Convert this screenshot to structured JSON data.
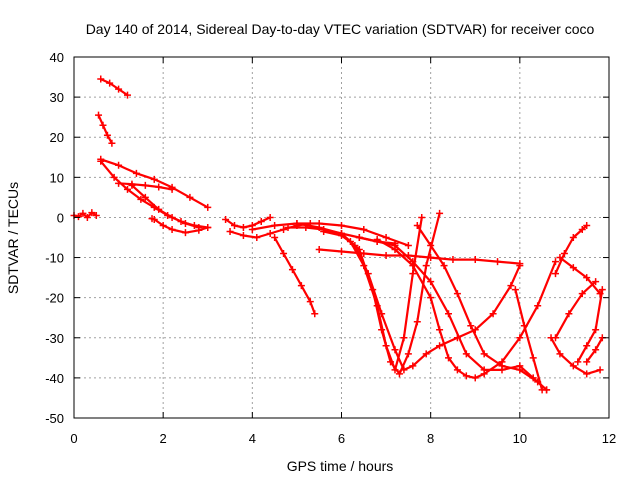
{
  "chart_data": {
    "type": "line",
    "title": "Day 140 of 2014, Sidereal Day-to-day VTEC variation (SDTVAR) for receiver coco",
    "xlabel": "GPS time / hours",
    "ylabel": "SDTVAR / TECUs",
    "xlim": [
      0,
      12
    ],
    "ylim": [
      -50,
      40
    ],
    "xticks": [
      "0",
      "2",
      "4",
      "6",
      "8",
      "10",
      "12"
    ],
    "yticks": [
      "40",
      "30",
      "20",
      "10",
      "0",
      "-10",
      "-20",
      "-30",
      "-40",
      "-50"
    ],
    "grid": true,
    "series_color": "#ff0000",
    "marker": "plus",
    "series": [
      {
        "x": [
          0.0,
          0.1,
          0.2,
          0.3,
          0.4,
          0.5
        ],
        "y": [
          0.5,
          0.2,
          1.0,
          0.0,
          1.2,
          0.5
        ]
      },
      {
        "x": [
          0.6,
          0.8,
          1.0,
          1.2
        ],
        "y": [
          34.5,
          33.5,
          32.0,
          30.5
        ]
      },
      {
        "x": [
          0.55,
          0.65,
          0.75,
          0.85
        ],
        "y": [
          25.5,
          23.0,
          20.5,
          18.5
        ]
      },
      {
        "x": [
          0.6,
          1.0,
          1.4,
          1.8,
          2.2,
          2.6,
          3.0
        ],
        "y": [
          14.5,
          13.0,
          11.0,
          9.5,
          7.5,
          5.0,
          2.5
        ]
      },
      {
        "x": [
          0.6,
          0.9,
          1.2,
          1.5,
          1.8,
          2.1,
          2.4,
          2.7,
          3.0
        ],
        "y": [
          14.0,
          10.0,
          7.0,
          4.5,
          2.5,
          0.5,
          -1.0,
          -2.0,
          -2.5
        ]
      },
      {
        "x": [
          1.0,
          1.3,
          1.6,
          1.9,
          2.2
        ],
        "y": [
          8.5,
          8.3,
          8.0,
          7.6,
          7.0
        ]
      },
      {
        "x": [
          1.3,
          1.6,
          1.9,
          2.2,
          2.5,
          2.8
        ],
        "y": [
          8.0,
          5.0,
          2.0,
          0.0,
          -1.5,
          -2.5
        ]
      },
      {
        "x": [
          1.8,
          2.0,
          2.2,
          2.5,
          2.8,
          3.0
        ],
        "y": [
          -0.5,
          -2.0,
          -3.0,
          -3.8,
          -3.2,
          -2.5
        ]
      },
      {
        "x": [
          1.75
        ],
        "y": [
          -0.3
        ]
      },
      {
        "x": [
          3.4,
          3.6,
          3.8,
          4.0,
          4.2,
          4.4
        ],
        "y": [
          -0.5,
          -2.0,
          -2.5,
          -2.0,
          -1.0,
          0.0
        ]
      },
      {
        "x": [
          3.5,
          3.8,
          4.1,
          4.4,
          4.7,
          5.0,
          5.3
        ],
        "y": [
          -3.5,
          -4.5,
          -5.0,
          -4.0,
          -3.0,
          -2.0,
          -1.5
        ]
      },
      {
        "x": [
          4.0,
          4.5,
          5.0,
          5.5,
          6.0,
          6.5,
          7.0,
          7.5
        ],
        "y": [
          -3.0,
          -2.0,
          -1.5,
          -1.5,
          -2.0,
          -3.0,
          -5.0,
          -7.0
        ]
      },
      {
        "x": [
          4.5,
          4.7,
          4.9,
          5.1,
          5.3,
          5.4
        ],
        "y": [
          -5.0,
          -9.0,
          -13.0,
          -17.0,
          -21.0,
          -24.0
        ]
      },
      {
        "x": [
          4.8,
          5.2,
          5.6,
          6.0,
          6.4,
          6.8,
          7.2
        ],
        "y": [
          -2.5,
          -2.5,
          -3.0,
          -4.0,
          -5.0,
          -6.0,
          -6.5
        ]
      },
      {
        "x": [
          5.5,
          6.0,
          6.5,
          7.0,
          7.5,
          8.0,
          8.5,
          9.0,
          9.5,
          10.0
        ],
        "y": [
          -8.0,
          -8.5,
          -9.0,
          -9.5,
          -9.5,
          -10.0,
          -10.5,
          -10.5,
          -11.0,
          -11.5
        ]
      },
      {
        "x": [
          5.0,
          5.5,
          6.0,
          6.4,
          6.7,
          6.9,
          7.1,
          7.3,
          7.5,
          7.7,
          7.9,
          8.2
        ],
        "y": [
          -1.5,
          -2.5,
          -4.0,
          -8.0,
          -18.0,
          -28.0,
          -36.0,
          -39.0,
          -34.0,
          -26.0,
          -12.0,
          1.0
        ]
      },
      {
        "x": [
          5.6,
          6.0,
          6.3,
          6.6,
          6.9,
          7.2,
          7.4,
          7.6,
          7.9,
          8.2,
          8.6,
          9.0,
          9.4,
          9.8,
          10.0
        ],
        "y": [
          -3.5,
          -4.5,
          -7.0,
          -14.0,
          -24.0,
          -33.0,
          -38.0,
          -37.0,
          -34.0,
          -32.0,
          -30.0,
          -28.0,
          -24.0,
          -17.0,
          -12.0
        ]
      },
      {
        "x": [
          6.2,
          6.5,
          6.8,
          7.0,
          7.2,
          7.4,
          7.6,
          7.8
        ],
        "y": [
          -6.0,
          -12.0,
          -22.0,
          -32.0,
          -38.0,
          -30.0,
          -14.0,
          0.0
        ]
      },
      {
        "x": [
          6.4,
          6.8,
          7.2,
          7.6,
          8.0,
          8.4,
          8.8,
          9.2,
          9.6,
          10.0,
          10.3,
          10.6
        ],
        "y": [
          -5.0,
          -6.0,
          -7.0,
          -11.0,
          -16.0,
          -24.0,
          -34.0,
          -38.0,
          -38.0,
          -37.0,
          -40.0,
          -43.0
        ]
      },
      {
        "x": [
          6.8,
          7.2,
          7.6,
          8.0,
          8.2,
          8.4,
          8.6,
          8.8,
          9.0,
          9.2,
          9.6,
          10.0,
          10.4,
          10.8
        ],
        "y": [
          -5.5,
          -8.0,
          -12.0,
          -20.0,
          -28.0,
          -35.0,
          -38.0,
          -39.5,
          -40.0,
          -39.0,
          -36.0,
          -30.0,
          -22.0,
          -11.0
        ]
      },
      {
        "x": [
          7.7,
          8.0,
          8.3,
          8.6,
          8.9,
          9.2,
          9.6,
          10.0,
          10.4,
          10.6
        ],
        "y": [
          -2.0,
          -7.0,
          -12.0,
          -19.0,
          -27.0,
          -34.0,
          -37.0,
          -38.0,
          -41.0,
          -43.0
        ]
      },
      {
        "x": [
          9.9,
          10.1,
          10.3,
          10.5
        ],
        "y": [
          -18.0,
          -27.0,
          -35.0,
          -43.0
        ]
      },
      {
        "x": [
          10.7,
          10.9,
          11.2,
          11.5,
          11.8
        ],
        "y": [
          -30.0,
          -34.0,
          -37.0,
          -39.0,
          -38.0
        ]
      },
      {
        "x": [
          10.8,
          11.1,
          11.4,
          11.7
        ],
        "y": [
          -30.0,
          -24.0,
          -19.0,
          -16.0
        ]
      },
      {
        "x": [
          10.8,
          11.0,
          11.2,
          11.4,
          11.5
        ],
        "y": [
          -14.0,
          -9.0,
          -5.0,
          -3.0,
          -2.0
        ]
      },
      {
        "x": [
          10.9,
          11.2,
          11.5,
          11.8
        ],
        "y": [
          -10.0,
          -12.5,
          -15.0,
          -19.0
        ]
      },
      {
        "x": [
          11.3,
          11.5,
          11.7,
          11.85
        ],
        "y": [
          -36.0,
          -32.0,
          -28.0,
          -18.0
        ]
      },
      {
        "x": [
          11.5,
          11.7,
          11.85
        ],
        "y": [
          -36.0,
          -33.0,
          -30.0
        ]
      }
    ]
  }
}
